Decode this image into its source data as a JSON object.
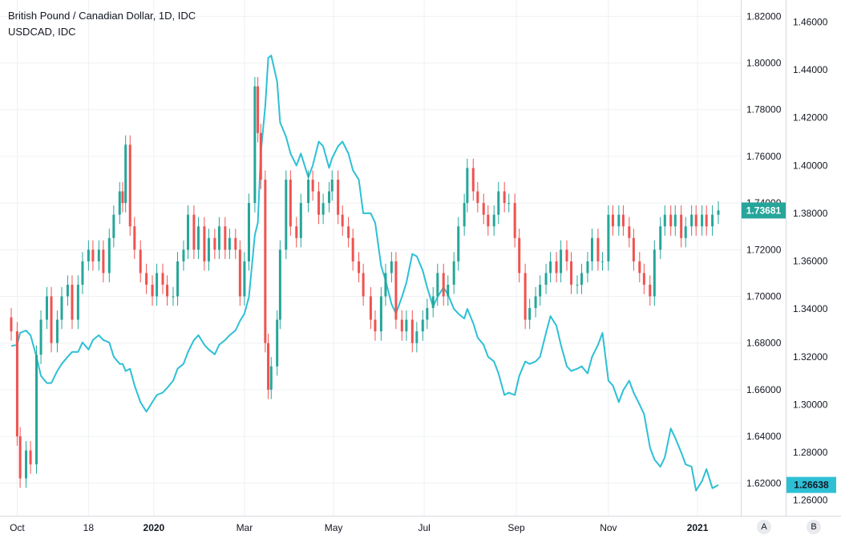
{
  "chart_data": {
    "type": "candlestick+line",
    "title": "British Pound / Canadian Dollar, 1D, IDC",
    "legend": [
      "British Pound / Canadian Dollar, 1D, IDC",
      "USDCAD, IDC"
    ],
    "x_ticks": [
      "Oct",
      "18",
      "2020",
      "Mar",
      "May",
      "Jul",
      "Sep",
      "Nov",
      "2021"
    ],
    "x_range": [
      "2019-09-27",
      "2021-01-15"
    ],
    "left_axis": {
      "ticks": [
        "1.82000",
        "1.80000",
        "1.78000",
        "1.76000",
        "1.74000",
        "1.72000",
        "1.70000",
        "1.68000",
        "1.66000",
        "1.64000",
        "1.62000"
      ],
      "ylim": [
        1.606,
        1.827
      ]
    },
    "right_axis": {
      "ticks": [
        "1.46000",
        "1.44000",
        "1.42000",
        "1.40000",
        "1.38000",
        "1.36000",
        "1.34000",
        "1.32000",
        "1.30000",
        "1.28000",
        "1.26000"
      ],
      "ylim": [
        1.2535,
        1.4692
      ]
    },
    "last_values": {
      "gbpcad": "1.73681",
      "usdcad": "1.26638"
    },
    "colors": {
      "up": "#26a69a",
      "down": "#ef5350",
      "line": "#2dc0d5",
      "grid": "#eef0f3",
      "text": "#131722"
    },
    "gbpcad_series": [
      [
        "2019-09-27",
        1.685
      ],
      [
        "2019-10-01",
        1.64
      ],
      [
        "2019-10-03",
        1.622
      ],
      [
        "2019-10-07",
        1.634
      ],
      [
        "2019-10-10",
        1.628
      ],
      [
        "2019-10-14",
        1.675
      ],
      [
        "2019-10-17",
        1.69
      ],
      [
        "2019-10-21",
        1.7
      ],
      [
        "2019-10-24",
        1.68
      ],
      [
        "2019-10-28",
        1.69
      ],
      [
        "2019-10-31",
        1.7
      ],
      [
        "2019-11-04",
        1.705
      ],
      [
        "2019-11-07",
        1.69
      ],
      [
        "2019-11-11",
        1.705
      ],
      [
        "2019-11-14",
        1.715
      ],
      [
        "2019-11-18",
        1.72
      ],
      [
        "2019-11-21",
        1.715
      ],
      [
        "2019-11-25",
        1.72
      ],
      [
        "2019-11-28",
        1.71
      ],
      [
        "2019-12-02",
        1.725
      ],
      [
        "2019-12-05",
        1.735
      ],
      [
        "2019-12-09",
        1.745
      ],
      [
        "2019-12-11",
        1.74
      ],
      [
        "2019-12-13",
        1.765
      ],
      [
        "2019-12-16",
        1.73
      ],
      [
        "2019-12-19",
        1.72
      ],
      [
        "2019-12-23",
        1.71
      ],
      [
        "2019-12-27",
        1.705
      ],
      [
        "2019-12-31",
        1.7
      ],
      [
        "2020-01-03",
        1.71
      ],
      [
        "2020-01-07",
        1.705
      ],
      [
        "2020-01-10",
        1.7
      ],
      [
        "2020-01-14",
        1.7
      ],
      [
        "2020-01-17",
        1.715
      ],
      [
        "2020-01-21",
        1.72
      ],
      [
        "2020-01-24",
        1.735
      ],
      [
        "2020-01-28",
        1.72
      ],
      [
        "2020-01-31",
        1.73
      ],
      [
        "2020-02-04",
        1.715
      ],
      [
        "2020-02-07",
        1.725
      ],
      [
        "2020-02-11",
        1.72
      ],
      [
        "2020-02-14",
        1.73
      ],
      [
        "2020-02-18",
        1.72
      ],
      [
        "2020-02-21",
        1.725
      ],
      [
        "2020-02-25",
        1.72
      ],
      [
        "2020-02-28",
        1.7
      ],
      [
        "2020-03-02",
        1.715
      ],
      [
        "2020-03-05",
        1.74
      ],
      [
        "2020-03-09",
        1.79
      ],
      [
        "2020-03-11",
        1.77
      ],
      [
        "2020-03-13",
        1.75
      ],
      [
        "2020-03-16",
        1.68
      ],
      [
        "2020-03-18",
        1.66
      ],
      [
        "2020-03-20",
        1.67
      ],
      [
        "2020-03-24",
        1.69
      ],
      [
        "2020-03-26",
        1.72
      ],
      [
        "2020-03-30",
        1.75
      ],
      [
        "2020-04-02",
        1.73
      ],
      [
        "2020-04-06",
        1.725
      ],
      [
        "2020-04-09",
        1.74
      ],
      [
        "2020-04-14",
        1.75
      ],
      [
        "2020-04-17",
        1.745
      ],
      [
        "2020-04-21",
        1.735
      ],
      [
        "2020-04-24",
        1.74
      ],
      [
        "2020-04-28",
        1.745
      ],
      [
        "2020-04-30",
        1.75
      ],
      [
        "2020-05-04",
        1.735
      ],
      [
        "2020-05-07",
        1.73
      ],
      [
        "2020-05-11",
        1.725
      ],
      [
        "2020-05-14",
        1.715
      ],
      [
        "2020-05-18",
        1.71
      ],
      [
        "2020-05-21",
        1.7
      ],
      [
        "2020-05-26",
        1.69
      ],
      [
        "2020-05-29",
        1.685
      ],
      [
        "2020-06-02",
        1.7
      ],
      [
        "2020-06-05",
        1.71
      ],
      [
        "2020-06-09",
        1.715
      ],
      [
        "2020-06-12",
        1.69
      ],
      [
        "2020-06-16",
        1.685
      ],
      [
        "2020-06-19",
        1.69
      ],
      [
        "2020-06-23",
        1.68
      ],
      [
        "2020-06-26",
        1.685
      ],
      [
        "2020-06-30",
        1.69
      ],
      [
        "2020-07-03",
        1.695
      ],
      [
        "2020-07-07",
        1.7
      ],
      [
        "2020-07-10",
        1.71
      ],
      [
        "2020-07-14",
        1.7
      ],
      [
        "2020-07-17",
        1.705
      ],
      [
        "2020-07-21",
        1.715
      ],
      [
        "2020-07-24",
        1.73
      ],
      [
        "2020-07-28",
        1.74
      ],
      [
        "2020-07-30",
        1.755
      ],
      [
        "2020-08-03",
        1.745
      ],
      [
        "2020-08-06",
        1.74
      ],
      [
        "2020-08-10",
        1.735
      ],
      [
        "2020-08-13",
        1.73
      ],
      [
        "2020-08-17",
        1.735
      ],
      [
        "2020-08-20",
        1.745
      ],
      [
        "2020-08-24",
        1.74
      ],
      [
        "2020-08-27",
        1.74
      ],
      [
        "2020-08-31",
        1.725
      ],
      [
        "2020-09-03",
        1.71
      ],
      [
        "2020-09-07",
        1.69
      ],
      [
        "2020-09-10",
        1.695
      ],
      [
        "2020-09-14",
        1.7
      ],
      [
        "2020-09-17",
        1.705
      ],
      [
        "2020-09-21",
        1.71
      ],
      [
        "2020-09-24",
        1.715
      ],
      [
        "2020-09-28",
        1.71
      ],
      [
        "2020-10-01",
        1.72
      ],
      [
        "2020-10-05",
        1.715
      ],
      [
        "2020-10-08",
        1.705
      ],
      [
        "2020-10-12",
        1.705
      ],
      [
        "2020-10-15",
        1.71
      ],
      [
        "2020-10-19",
        1.715
      ],
      [
        "2020-10-22",
        1.725
      ],
      [
        "2020-10-26",
        1.715
      ],
      [
        "2020-10-29",
        1.715
      ],
      [
        "2020-11-02",
        1.735
      ],
      [
        "2020-11-05",
        1.73
      ],
      [
        "2020-11-09",
        1.735
      ],
      [
        "2020-11-12",
        1.73
      ],
      [
        "2020-11-16",
        1.725
      ],
      [
        "2020-11-19",
        1.715
      ],
      [
        "2020-11-23",
        1.71
      ],
      [
        "2020-11-26",
        1.705
      ],
      [
        "2020-11-30",
        1.7
      ],
      [
        "2020-12-03",
        1.72
      ],
      [
        "2020-12-07",
        1.73
      ],
      [
        "2020-12-10",
        1.735
      ],
      [
        "2020-12-14",
        1.73
      ],
      [
        "2020-12-17",
        1.735
      ],
      [
        "2020-12-21",
        1.725
      ],
      [
        "2020-12-24",
        1.73
      ],
      [
        "2020-12-28",
        1.735
      ],
      [
        "2020-12-31",
        1.73
      ],
      [
        "2021-01-04",
        1.735
      ],
      [
        "2021-01-07",
        1.73
      ],
      [
        "2021-01-11",
        1.735
      ],
      [
        "2021-01-15",
        1.73681
      ]
    ],
    "usdcad_series": [
      [
        "2019-09-27",
        1.3245
      ],
      [
        "2019-10-01",
        1.325
      ],
      [
        "2019-10-03",
        1.33
      ],
      [
        "2019-10-07",
        1.331
      ],
      [
        "2019-10-10",
        1.329
      ],
      [
        "2019-10-14",
        1.32
      ],
      [
        "2019-10-17",
        1.312
      ],
      [
        "2019-10-21",
        1.309
      ],
      [
        "2019-10-24",
        1.309
      ],
      [
        "2019-10-28",
        1.314
      ],
      [
        "2019-10-31",
        1.317
      ],
      [
        "2019-11-04",
        1.32
      ],
      [
        "2019-11-07",
        1.322
      ],
      [
        "2019-11-11",
        1.322
      ],
      [
        "2019-11-14",
        1.326
      ],
      [
        "2019-11-18",
        1.323
      ],
      [
        "2019-11-21",
        1.327
      ],
      [
        "2019-11-25",
        1.329
      ],
      [
        "2019-11-28",
        1.327
      ],
      [
        "2019-12-02",
        1.326
      ],
      [
        "2019-12-05",
        1.32
      ],
      [
        "2019-12-09",
        1.317
      ],
      [
        "2019-12-11",
        1.317
      ],
      [
        "2019-12-13",
        1.314
      ],
      [
        "2019-12-16",
        1.315
      ],
      [
        "2019-12-19",
        1.308
      ],
      [
        "2019-12-23",
        1.301
      ],
      [
        "2019-12-27",
        1.297
      ],
      [
        "2019-12-31",
        1.301
      ],
      [
        "2020-01-03",
        1.304
      ],
      [
        "2020-01-07",
        1.305
      ],
      [
        "2020-01-10",
        1.307
      ],
      [
        "2020-01-14",
        1.31
      ],
      [
        "2020-01-17",
        1.315
      ],
      [
        "2020-01-21",
        1.317
      ],
      [
        "2020-01-24",
        1.322
      ],
      [
        "2020-01-28",
        1.327
      ],
      [
        "2020-01-31",
        1.329
      ],
      [
        "2020-02-04",
        1.325
      ],
      [
        "2020-02-07",
        1.323
      ],
      [
        "2020-02-11",
        1.321
      ],
      [
        "2020-02-14",
        1.325
      ],
      [
        "2020-02-18",
        1.327
      ],
      [
        "2020-02-21",
        1.329
      ],
      [
        "2020-02-25",
        1.331
      ],
      [
        "2020-02-28",
        1.335
      ],
      [
        "2020-03-02",
        1.338
      ],
      [
        "2020-03-05",
        1.345
      ],
      [
        "2020-03-09",
        1.371
      ],
      [
        "2020-03-11",
        1.376
      ],
      [
        "2020-03-13",
        1.405
      ],
      [
        "2020-03-16",
        1.425
      ],
      [
        "2020-03-18",
        1.445
      ],
      [
        "2020-03-20",
        1.446
      ],
      [
        "2020-03-24",
        1.435
      ],
      [
        "2020-03-26",
        1.418
      ],
      [
        "2020-03-30",
        1.412
      ],
      [
        "2020-04-02",
        1.405
      ],
      [
        "2020-04-06",
        1.4
      ],
      [
        "2020-04-09",
        1.405
      ],
      [
        "2020-04-14",
        1.395
      ],
      [
        "2020-04-17",
        1.4
      ],
      [
        "2020-04-21",
        1.41
      ],
      [
        "2020-04-24",
        1.408
      ],
      [
        "2020-04-28",
        1.399
      ],
      [
        "2020-04-30",
        1.403
      ],
      [
        "2020-05-04",
        1.408
      ],
      [
        "2020-05-07",
        1.41
      ],
      [
        "2020-05-11",
        1.405
      ],
      [
        "2020-05-14",
        1.398
      ],
      [
        "2020-05-18",
        1.394
      ],
      [
        "2020-05-21",
        1.38
      ],
      [
        "2020-05-26",
        1.38
      ],
      [
        "2020-05-29",
        1.376
      ],
      [
        "2020-06-02",
        1.358
      ],
      [
        "2020-06-05",
        1.352
      ],
      [
        "2020-06-09",
        1.342
      ],
      [
        "2020-06-12",
        1.338
      ],
      [
        "2020-06-16",
        1.345
      ],
      [
        "2020-06-19",
        1.351
      ],
      [
        "2020-06-23",
        1.363
      ],
      [
        "2020-06-26",
        1.362
      ],
      [
        "2020-06-30",
        1.356
      ],
      [
        "2020-07-03",
        1.349
      ],
      [
        "2020-07-07",
        1.341
      ],
      [
        "2020-07-10",
        1.345
      ],
      [
        "2020-07-14",
        1.349
      ],
      [
        "2020-07-17",
        1.346
      ],
      [
        "2020-07-21",
        1.34
      ],
      [
        "2020-07-24",
        1.338
      ],
      [
        "2020-07-28",
        1.336
      ],
      [
        "2020-07-30",
        1.34
      ],
      [
        "2020-08-03",
        1.334
      ],
      [
        "2020-08-06",
        1.328
      ],
      [
        "2020-08-10",
        1.325
      ],
      [
        "2020-08-13",
        1.32
      ],
      [
        "2020-08-17",
        1.318
      ],
      [
        "2020-08-20",
        1.313
      ],
      [
        "2020-08-24",
        1.304
      ],
      [
        "2020-08-27",
        1.305
      ],
      [
        "2020-08-31",
        1.304
      ],
      [
        "2020-09-03",
        1.312
      ],
      [
        "2020-09-07",
        1.318
      ],
      [
        "2020-09-10",
        1.317
      ],
      [
        "2020-09-14",
        1.318
      ],
      [
        "2020-09-17",
        1.32
      ],
      [
        "2020-09-21",
        1.33
      ],
      [
        "2020-09-24",
        1.337
      ],
      [
        "2020-09-28",
        1.333
      ],
      [
        "2020-10-01",
        1.325
      ],
      [
        "2020-10-05",
        1.316
      ],
      [
        "2020-10-08",
        1.314
      ],
      [
        "2020-10-12",
        1.315
      ],
      [
        "2020-10-15",
        1.316
      ],
      [
        "2020-10-19",
        1.313
      ],
      [
        "2020-10-22",
        1.32
      ],
      [
        "2020-10-26",
        1.325
      ],
      [
        "2020-10-29",
        1.33
      ],
      [
        "2020-11-02",
        1.31
      ],
      [
        "2020-11-05",
        1.308
      ],
      [
        "2020-11-09",
        1.301
      ],
      [
        "2020-11-12",
        1.306
      ],
      [
        "2020-11-16",
        1.31
      ],
      [
        "2020-11-19",
        1.305
      ],
      [
        "2020-11-23",
        1.3
      ],
      [
        "2020-11-26",
        1.296
      ],
      [
        "2020-11-30",
        1.282
      ],
      [
        "2020-12-03",
        1.277
      ],
      [
        "2020-12-07",
        1.274
      ],
      [
        "2020-12-10",
        1.278
      ],
      [
        "2020-12-14",
        1.29
      ],
      [
        "2020-12-17",
        1.286
      ],
      [
        "2020-12-21",
        1.28
      ],
      [
        "2020-12-24",
        1.275
      ],
      [
        "2020-12-28",
        1.274
      ],
      [
        "2020-12-31",
        1.264
      ],
      [
        "2021-01-04",
        1.268
      ],
      [
        "2021-01-07",
        1.273
      ],
      [
        "2021-01-11",
        1.265
      ],
      [
        "2021-01-15",
        1.26638
      ]
    ]
  },
  "ui": {
    "btn_a": "A",
    "btn_b": "B"
  }
}
